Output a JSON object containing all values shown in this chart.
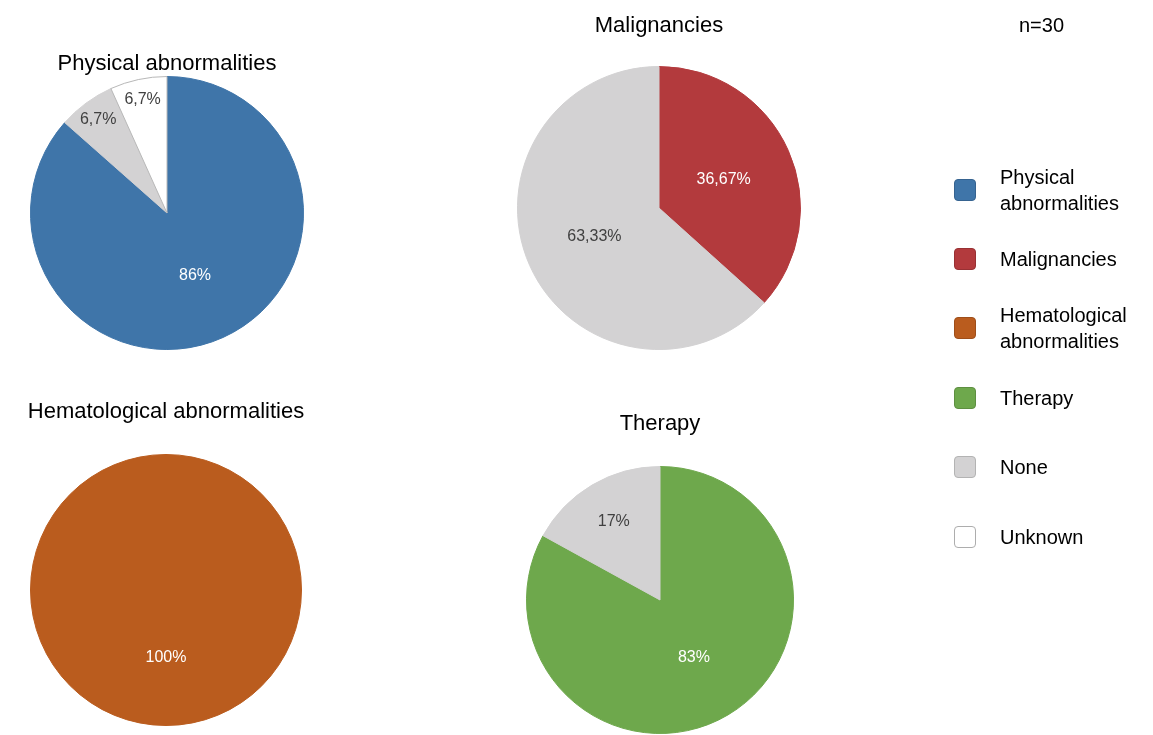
{
  "chart_data": [
    {
      "type": "pie",
      "title": "Physical abnormalities",
      "categories": [
        "Physical abnormalities",
        "None",
        "Unknown"
      ],
      "values": [
        86,
        6.7,
        6.7
      ],
      "colors": [
        "#3f75a9",
        "#d3d2d3",
        "#ffffff"
      ],
      "value_labels": [
        "86%",
        "6,7%",
        "6,7%"
      ],
      "legend": "right"
    },
    {
      "type": "pie",
      "title": "Malignancies",
      "categories": [
        "Malignancies",
        null
      ],
      "values": [
        36.67,
        63.33
      ],
      "colors": [
        "#b33a3d",
        "#d3d2d3"
      ],
      "value_labels": [
        "36,67%",
        "63,33%"
      ],
      "legend": "right"
    },
    {
      "type": "other",
      "annotations": [
        "n=30"
      ]
    },
    {
      "type": "pie",
      "title": "Hematological abnormalities",
      "categories": [
        "Hematological abnormalities"
      ],
      "values": [
        100
      ],
      "colors": [
        "#ba5c1e"
      ],
      "value_labels": [
        "100%"
      ],
      "legend": "right"
    },
    {
      "type": "pie",
      "title": "Therapy",
      "categories": [
        "Therapy",
        null
      ],
      "values": [
        83,
        17
      ],
      "colors": [
        "#6ea84c",
        "#d3d2d3"
      ],
      "value_labels": [
        "83%",
        "17%"
      ],
      "legend": "right"
    }
  ]
}
